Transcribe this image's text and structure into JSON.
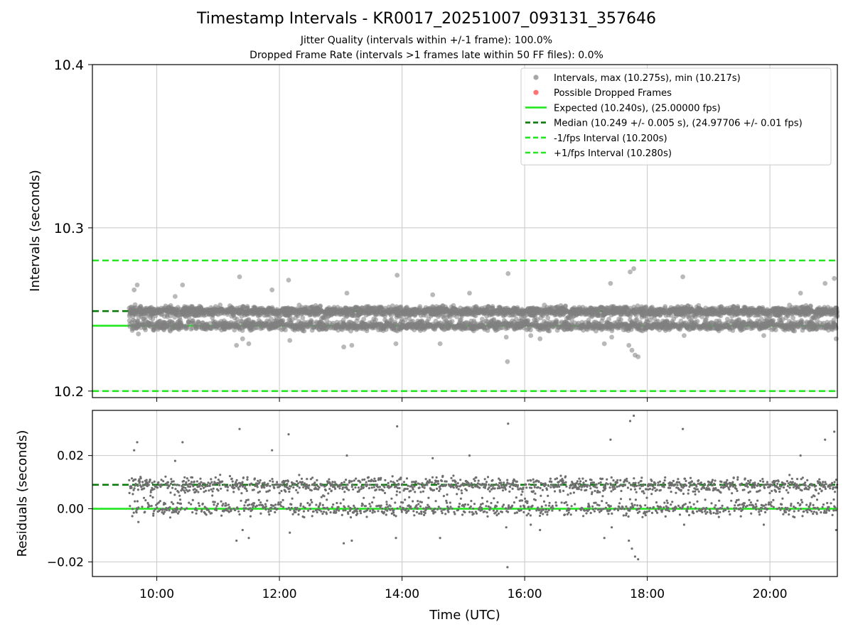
{
  "figure": {
    "title": "Timestamp Intervals - KR0017_20251007_093131_357646",
    "subtitle_jitter": "Jitter Quality (intervals within +/-1 frame): 100.0%",
    "subtitle_dropped": "Dropped Frame Rate (intervals >1 frames late within 50 FF files): 0.0%"
  },
  "colors": {
    "interval_points": "#808080",
    "dropped_points": "#ff4040",
    "expected": "#22e61e",
    "median": "#0a7a0a",
    "fps_band": "#22e61e",
    "grid": "#c8c8c8",
    "axis": "#000000"
  },
  "chart_data": [
    {
      "type": "scatter",
      "name": "intervals",
      "title": "Timestamp Intervals - KR0017_20251007_093131_357646",
      "xlabel": "",
      "ylabel": "Intervals (seconds)",
      "xlim": [
        8.95,
        21.1
      ],
      "ylim": [
        10.196,
        10.4
      ],
      "yticks": [
        10.2,
        10.3,
        10.4
      ],
      "yticklabels": [
        "10.2",
        "10.3",
        "10.4"
      ],
      "grid": true,
      "legend_position": "top-right",
      "legend": [
        {
          "kind": "point",
          "label": "Intervals, max (10.275s), min (10.217s)",
          "color": "#909090"
        },
        {
          "kind": "point",
          "label": "Possible Dropped Frames",
          "color": "#ff5050"
        },
        {
          "kind": "solid",
          "label": "Expected (10.240s), (25.00000 fps)",
          "color": "#22e61e"
        },
        {
          "kind": "dashed",
          "label": "Median (10.249 +/- 0.005 s), (24.97706 +/- 0.01 fps)",
          "color": "#0a7a0a"
        },
        {
          "kind": "dashed",
          "label": "-1/fps Interval (10.200s)",
          "color": "#22e61e"
        },
        {
          "kind": "dashed",
          "label": "+1/fps Interval (10.280s)",
          "color": "#22e61e"
        }
      ],
      "reference_lines": [
        {
          "name": "expected",
          "value": 10.24,
          "style": "solid"
        },
        {
          "name": "median",
          "value": 10.249,
          "style": "dashed"
        },
        {
          "name": "minus-one-frame",
          "value": 10.2,
          "style": "dashed"
        },
        {
          "name": "plus-one-frame",
          "value": 10.28,
          "style": "dashed"
        }
      ],
      "series": [
        {
          "name": "Intervals",
          "x_range": [
            9.55,
            21.1
          ],
          "levels": [
            10.24,
            10.249
          ],
          "typical_spread": 0.0025,
          "count": 4250,
          "max": 10.275,
          "min": 10.217,
          "outliers": [
            {
              "x": 9.63,
              "y": 10.262
            },
            {
              "x": 9.68,
              "y": 10.265
            },
            {
              "x": 9.7,
              "y": 10.235
            },
            {
              "x": 10.42,
              "y": 10.265
            },
            {
              "x": 10.3,
              "y": 10.258
            },
            {
              "x": 11.35,
              "y": 10.27
            },
            {
              "x": 11.3,
              "y": 10.228
            },
            {
              "x": 11.4,
              "y": 10.232
            },
            {
              "x": 11.5,
              "y": 10.229
            },
            {
              "x": 11.88,
              "y": 10.262
            },
            {
              "x": 12.15,
              "y": 10.268
            },
            {
              "x": 12.17,
              "y": 10.231
            },
            {
              "x": 13.05,
              "y": 10.227
            },
            {
              "x": 13.18,
              "y": 10.228
            },
            {
              "x": 13.1,
              "y": 10.26
            },
            {
              "x": 13.92,
              "y": 10.271
            },
            {
              "x": 13.9,
              "y": 10.229
            },
            {
              "x": 14.62,
              "y": 10.229
            },
            {
              "x": 14.5,
              "y": 10.259
            },
            {
              "x": 15.1,
              "y": 10.26
            },
            {
              "x": 15.7,
              "y": 10.233
            },
            {
              "x": 15.72,
              "y": 10.218
            },
            {
              "x": 15.73,
              "y": 10.272
            },
            {
              "x": 16.1,
              "y": 10.234
            },
            {
              "x": 16.25,
              "y": 10.232
            },
            {
              "x": 17.3,
              "y": 10.229
            },
            {
              "x": 17.4,
              "y": 10.266
            },
            {
              "x": 17.42,
              "y": 10.233
            },
            {
              "x": 17.72,
              "y": 10.273
            },
            {
              "x": 17.78,
              "y": 10.275
            },
            {
              "x": 17.75,
              "y": 10.225
            },
            {
              "x": 17.8,
              "y": 10.222
            },
            {
              "x": 17.85,
              "y": 10.221
            },
            {
              "x": 17.7,
              "y": 10.228
            },
            {
              "x": 18.58,
              "y": 10.27
            },
            {
              "x": 18.6,
              "y": 10.234
            },
            {
              "x": 19.9,
              "y": 10.234
            },
            {
              "x": 20.5,
              "y": 10.26
            },
            {
              "x": 20.9,
              "y": 10.266
            },
            {
              "x": 21.05,
              "y": 10.269
            },
            {
              "x": 21.08,
              "y": 10.232
            }
          ]
        },
        {
          "name": "Possible Dropped Frames",
          "count": 0,
          "points": []
        }
      ]
    },
    {
      "type": "scatter",
      "name": "residuals",
      "xlabel": "Time (UTC)",
      "ylabel": "Residuals (seconds)",
      "xlim": [
        8.95,
        21.1
      ],
      "ylim": [
        -0.0255,
        0.037
      ],
      "xticks": [
        10,
        12,
        14,
        16,
        18,
        20
      ],
      "xticklabels": [
        "10:00",
        "12:00",
        "14:00",
        "16:00",
        "18:00",
        "20:00"
      ],
      "yticks": [
        -0.02,
        0.0,
        0.02
      ],
      "yticklabels": [
        "−0.02",
        "0.00",
        "0.02"
      ],
      "grid": true,
      "reference_lines": [
        {
          "name": "zero",
          "value": 0.0,
          "style": "solid"
        },
        {
          "name": "median-offset",
          "value": 0.009,
          "style": "dashed"
        }
      ],
      "series": [
        {
          "name": "Residuals",
          "derived_from": "intervals",
          "offset": -10.24
        }
      ]
    }
  ]
}
